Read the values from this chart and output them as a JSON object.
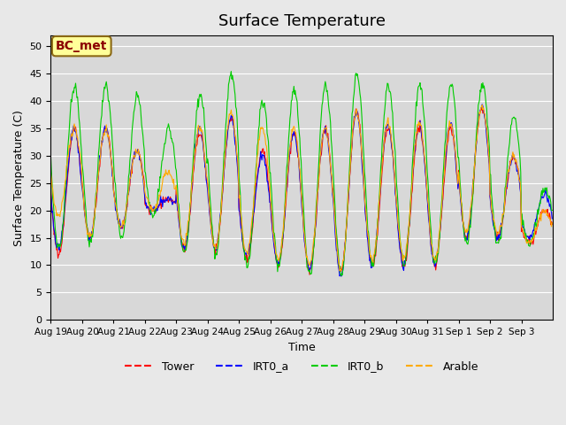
{
  "title": "Surface Temperature",
  "ylabel": "Surface Temperature (C)",
  "xlabel": "Time",
  "ylim": [
    0,
    52
  ],
  "yticks": [
    0,
    5,
    10,
    15,
    20,
    25,
    30,
    35,
    40,
    45,
    50
  ],
  "bg_color": "#e8e8e8",
  "plot_bg_color": "#d8d8d8",
  "annotation_text": "BC_met",
  "annotation_color": "#8B0000",
  "annotation_bg": "#ffff99",
  "colors": {
    "Tower": "#ff0000",
    "IRT0_a": "#0000ff",
    "IRT0_b": "#00cc00",
    "Arable": "#ffaa00"
  },
  "n_days": 16,
  "xticklabels": [
    "Aug 19",
    "Aug 20",
    "Aug 21",
    "Aug 22",
    "Aug 23",
    "Aug 24",
    "Aug 25",
    "Aug 26",
    "Aug 27",
    "Aug 28",
    "Aug 29",
    "Aug 30",
    "Aug 31",
    "Sep 1",
    "Sep 2",
    "Sep 3"
  ],
  "figsize": [
    6.4,
    4.8
  ],
  "dpi": 100
}
